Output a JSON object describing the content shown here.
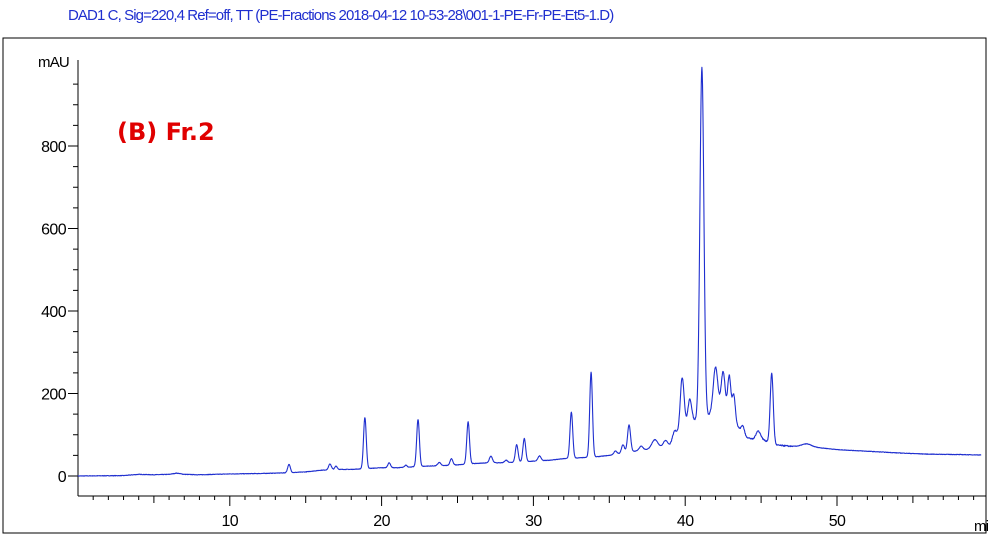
{
  "chart_data": {
    "type": "line",
    "title": "DAD1 C, Sig=220,4 Ref=off, TT (PE-Fractions 2018-04-12 10-53-28\\001-1-PE-Fr-PE-Et5-1.D)",
    "annotation": "(B) Fr.2",
    "ylabel": "mAU",
    "xlabel": "mi",
    "xlim": [
      0,
      59.5
    ],
    "ylim": [
      -20,
      1010
    ],
    "x_ticks": [
      10,
      20,
      30,
      40,
      50
    ],
    "y_ticks": [
      0,
      200,
      400,
      600,
      800
    ],
    "line_color": "#1f2fcf",
    "annotation_color": "#e00000",
    "baseline": [
      [
        0,
        0
      ],
      [
        3,
        1
      ],
      [
        4,
        4
      ],
      [
        5,
        3
      ],
      [
        6,
        4
      ],
      [
        6.5,
        7
      ],
      [
        7,
        4
      ],
      [
        8,
        3
      ],
      [
        10,
        5
      ],
      [
        12,
        6
      ],
      [
        13,
        7
      ],
      [
        14,
        8
      ],
      [
        15,
        10
      ],
      [
        16,
        14
      ],
      [
        17,
        16
      ],
      [
        18,
        16
      ],
      [
        19,
        18
      ],
      [
        20,
        20
      ],
      [
        21,
        20
      ],
      [
        22,
        22
      ],
      [
        23,
        24
      ],
      [
        24,
        25
      ],
      [
        25,
        27
      ],
      [
        26,
        30
      ],
      [
        27,
        32
      ],
      [
        28,
        32
      ],
      [
        29,
        34
      ],
      [
        30,
        36
      ],
      [
        31,
        38
      ],
      [
        32,
        42
      ],
      [
        33,
        44
      ],
      [
        34,
        46
      ],
      [
        35,
        50
      ],
      [
        36,
        56
      ],
      [
        37,
        62
      ],
      [
        38,
        66
      ],
      [
        39,
        72
      ],
      [
        40,
        115
      ],
      [
        40.5,
        130
      ],
      [
        41,
        145
      ],
      [
        41.5,
        145
      ],
      [
        42,
        160
      ],
      [
        43,
        150
      ],
      [
        43.5,
        118
      ],
      [
        44,
        95
      ],
      [
        44.5,
        88
      ],
      [
        45,
        90
      ],
      [
        45.5,
        82
      ],
      [
        46,
        75
      ],
      [
        47,
        72
      ],
      [
        48,
        72
      ],
      [
        49,
        68
      ],
      [
        50,
        64
      ],
      [
        51,
        62
      ],
      [
        52,
        60
      ],
      [
        53,
        58
      ],
      [
        54,
        56
      ],
      [
        56,
        53
      ],
      [
        58,
        52
      ],
      [
        59.5,
        51
      ]
    ],
    "peaks": [
      {
        "t": 13.9,
        "h": 20,
        "w": 0.09
      },
      {
        "t": 16.6,
        "h": 14,
        "w": 0.09
      },
      {
        "t": 17.0,
        "h": 8,
        "w": 0.08
      },
      {
        "t": 18.9,
        "h": 124,
        "w": 0.09
      },
      {
        "t": 20.5,
        "h": 12,
        "w": 0.09
      },
      {
        "t": 21.6,
        "h": 5,
        "w": 0.08
      },
      {
        "t": 22.4,
        "h": 114,
        "w": 0.09
      },
      {
        "t": 23.8,
        "h": 8,
        "w": 0.1
      },
      {
        "t": 24.6,
        "h": 16,
        "w": 0.09
      },
      {
        "t": 25.7,
        "h": 102,
        "w": 0.09
      },
      {
        "t": 27.2,
        "h": 16,
        "w": 0.1
      },
      {
        "t": 28.2,
        "h": 6,
        "w": 0.1
      },
      {
        "t": 28.9,
        "h": 42,
        "w": 0.09
      },
      {
        "t": 29.4,
        "h": 56,
        "w": 0.09
      },
      {
        "t": 30.4,
        "h": 12,
        "w": 0.1
      },
      {
        "t": 32.5,
        "h": 112,
        "w": 0.09
      },
      {
        "t": 33.8,
        "h": 206,
        "w": 0.09
      },
      {
        "t": 35.4,
        "h": 8,
        "w": 0.1
      },
      {
        "t": 35.9,
        "h": 20,
        "w": 0.1
      },
      {
        "t": 36.3,
        "h": 66,
        "w": 0.1
      },
      {
        "t": 37.1,
        "h": 10,
        "w": 0.12
      },
      {
        "t": 38.0,
        "h": 22,
        "w": 0.2
      },
      {
        "t": 38.7,
        "h": 16,
        "w": 0.15
      },
      {
        "t": 39.3,
        "h": 24,
        "w": 0.15
      },
      {
        "t": 39.8,
        "h": 132,
        "w": 0.13
      },
      {
        "t": 40.3,
        "h": 62,
        "w": 0.13
      },
      {
        "t": 41.1,
        "h": 845,
        "w": 0.13
      },
      {
        "t": 42.0,
        "h": 105,
        "w": 0.15
      },
      {
        "t": 42.5,
        "h": 98,
        "w": 0.13
      },
      {
        "t": 42.9,
        "h": 92,
        "w": 0.1
      },
      {
        "t": 43.2,
        "h": 60,
        "w": 0.1
      },
      {
        "t": 43.8,
        "h": 18,
        "w": 0.1
      },
      {
        "t": 44.8,
        "h": 20,
        "w": 0.15
      },
      {
        "t": 45.7,
        "h": 170,
        "w": 0.1
      },
      {
        "t": 48.0,
        "h": 6,
        "w": 0.3
      }
    ]
  }
}
